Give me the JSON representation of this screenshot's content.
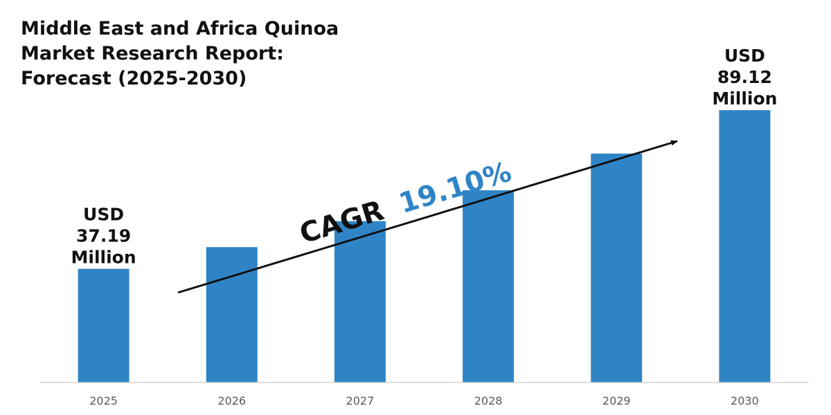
{
  "title_lines": [
    "Middle East and Africa Quinoa",
    "Market Research Report:",
    "Forecast (2025-2030)"
  ],
  "cagr": {
    "prefix": "CAGR",
    "value": "19.10%",
    "value_color": "#2f84c6"
  },
  "chart_data": {
    "type": "bar",
    "title": "Middle East and Africa Quinoa Market Research Report: Forecast (2025-2030)",
    "xlabel": "",
    "ylabel": "",
    "categories": [
      "2025",
      "2026",
      "2027",
      "2028",
      "2029",
      "2030"
    ],
    "series": [
      {
        "values": [
          37.19,
          44.3,
          52.8,
          62.9,
          74.9,
          89.12
        ]
      }
    ],
    "ylim": [
      0,
      98
    ],
    "grid": false,
    "bar_color": "#2f84c6",
    "annotations": [
      {
        "category": "2025",
        "lines": [
          "USD",
          "37.19",
          "Million"
        ]
      },
      {
        "category": "2030",
        "lines": [
          "USD",
          "89.12",
          "Million"
        ]
      }
    ]
  }
}
